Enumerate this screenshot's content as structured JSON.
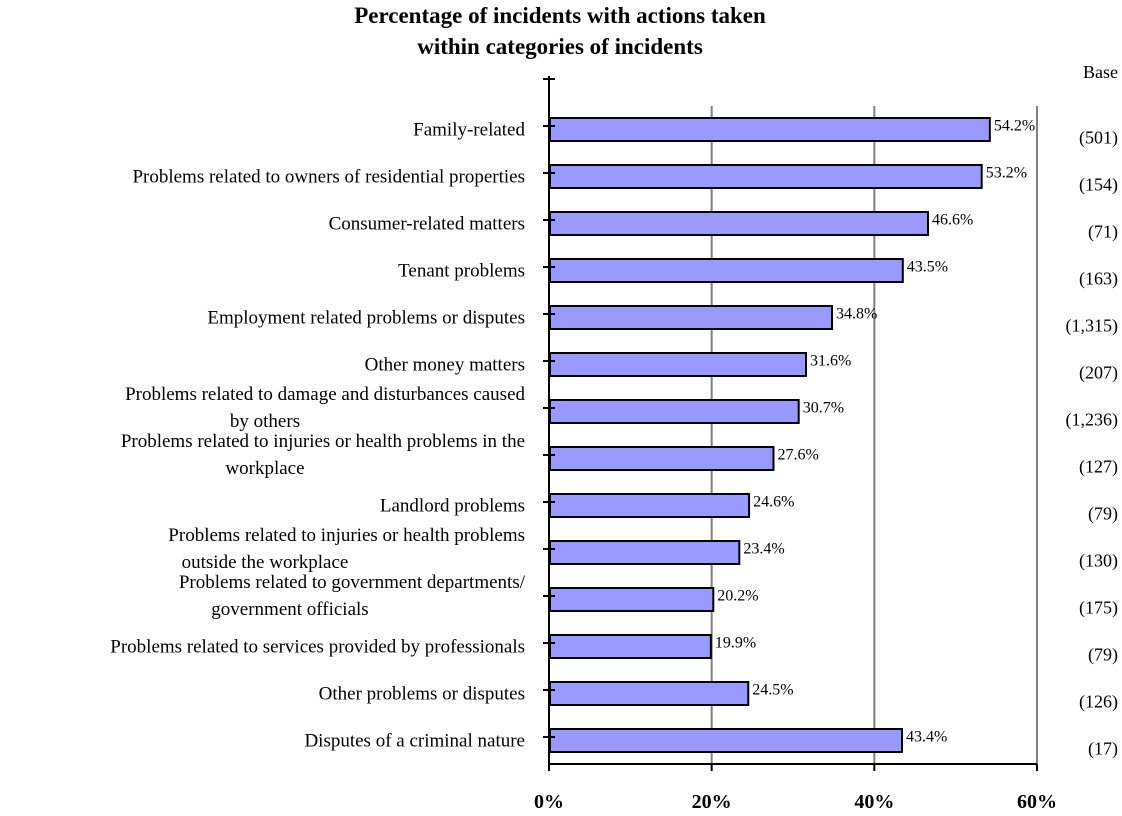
{
  "chart_data": {
    "type": "bar",
    "orientation": "horizontal",
    "title": "Percentage of incidents with actions taken within categories of incidents",
    "title_lines": [
      "Percentage of incidents with actions taken",
      "within categories of incidents"
    ],
    "xlabel": "",
    "ylabel": "",
    "xlim": [
      0,
      60
    ],
    "x_ticks": [
      "0%",
      "20%",
      "40%",
      "60%"
    ],
    "x_tick_values": [
      0,
      20,
      40,
      60
    ],
    "grid": "vertical",
    "base_header": "Base",
    "categories": [
      "Family-related",
      "Problems related to owners of residential properties",
      "Consumer-related matters",
      "Tenant problems",
      "Employment related problems or disputes",
      "Other money matters",
      "Problems related to damage and disturbances caused by others",
      "Problems related to injuries or health problems in the workplace",
      "Landlord problems",
      "Problems related to injuries or health problems outside the workplace",
      "Problems related to government departments/ government officials",
      "Problems related to services provided by professionals",
      "Other problems or disputes",
      "Disputes of a criminal nature"
    ],
    "category_label_lines": [
      [
        "Family-related"
      ],
      [
        "Problems related to owners of residential properties"
      ],
      [
        "Consumer-related matters"
      ],
      [
        "Tenant problems"
      ],
      [
        "Employment related problems or disputes"
      ],
      [
        "Other money matters"
      ],
      [
        "Problems related to damage and disturbances caused",
        "by others"
      ],
      [
        "Problems related to injuries or health problems in the",
        "workplace"
      ],
      [
        "Landlord problems"
      ],
      [
        "Problems related to injuries or health problems",
        "outside the workplace"
      ],
      [
        "Problems related to government departments/",
        "government officials"
      ],
      [
        "Problems related to services provided by professionals"
      ],
      [
        "Other problems or disputes"
      ],
      [
        "Disputes of a criminal nature"
      ]
    ],
    "values": [
      54.2,
      53.2,
      46.6,
      43.5,
      34.8,
      31.6,
      30.7,
      27.6,
      24.6,
      23.4,
      20.2,
      19.9,
      24.5,
      43.4
    ],
    "value_labels": [
      "54.2%",
      "53.2%",
      "46.6%",
      "43.5%",
      "34.8%",
      "31.6%",
      "30.7%",
      "27.6%",
      "24.6%",
      "23.4%",
      "20.2%",
      "19.9%",
      "24.5%",
      "43.4%"
    ],
    "bases": [
      "(501)",
      "(154)",
      "(71)",
      "(163)",
      "(1,315)",
      "(207)",
      "(1,236)",
      "(127)",
      "(79)",
      "(130)",
      "(175)",
      "(79)",
      "(126)",
      "(17)"
    ],
    "colors": {
      "bar_fill": "#9999FF",
      "bar_stroke": "#000000",
      "grid": "#808080",
      "axis": "#000000"
    }
  }
}
